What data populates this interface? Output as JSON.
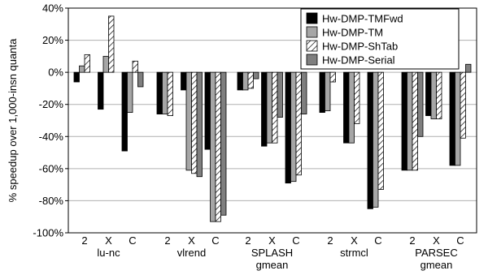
{
  "chart_data": {
    "type": "bar",
    "ylabel": "% speedup over 1,000-insn quanta",
    "ylim": [
      -100,
      40
    ],
    "yticks": [
      -100,
      -80,
      -60,
      -40,
      -20,
      0,
      20,
      40
    ],
    "ytick_labels": [
      "-100%",
      "-80%",
      "-60%",
      "-40%",
      "-20%",
      "0%",
      "20%",
      "40%"
    ],
    "grid": true,
    "legend_position": "top-right",
    "series": [
      {
        "name": "Hw-DMP-TMFwd",
        "color": "#000000",
        "pattern": "solid"
      },
      {
        "name": "Hw-DMP-TM",
        "color": "#a6a6a6",
        "pattern": "solid"
      },
      {
        "name": "Hw-DMP-ShTab",
        "color": "#ffffff",
        "pattern": "hatch"
      },
      {
        "name": "Hw-DMP-Serial",
        "color": "#7f7f7f",
        "pattern": "solid"
      }
    ],
    "groups": [
      {
        "label": [
          "lu-nc"
        ],
        "subgroups": [
          {
            "label": "2",
            "values": [
              -6,
              4,
              11,
              null
            ]
          },
          {
            "label": "X",
            "values": [
              -23,
              10,
              35,
              null
            ]
          },
          {
            "label": "C",
            "values": [
              -49,
              -25,
              7,
              -9
            ]
          }
        ]
      },
      {
        "label": [
          "vlrend"
        ],
        "subgroups": [
          {
            "label": "2",
            "values": [
              -26,
              -26,
              -27,
              null
            ]
          },
          {
            "label": "X",
            "values": [
              -11,
              -61,
              -63,
              -65
            ]
          },
          {
            "label": "C",
            "values": [
              -48,
              -93,
              -93,
              -89
            ]
          }
        ]
      },
      {
        "label": [
          "SPLASH",
          "gmean"
        ],
        "subgroups": [
          {
            "label": "2",
            "values": [
              -11,
              -11,
              -10,
              -4
            ]
          },
          {
            "label": "X",
            "values": [
              -46,
              -44,
              -44,
              -28
            ]
          },
          {
            "label": "C",
            "values": [
              -69,
              -68,
              -64,
              -26
            ]
          }
        ]
      },
      {
        "label": [
          "strmcl"
        ],
        "subgroups": [
          {
            "label": "2",
            "values": [
              -25,
              -24,
              -6,
              null
            ]
          },
          {
            "label": "X",
            "values": [
              -44,
              -44,
              -32,
              null
            ]
          },
          {
            "label": "C",
            "values": [
              -85,
              -84,
              -73,
              null
            ]
          }
        ]
      },
      {
        "label": [
          "PARSEC",
          "gmean"
        ],
        "subgroups": [
          {
            "label": "2",
            "values": [
              -61,
              -61,
              -61,
              -40
            ]
          },
          {
            "label": "X",
            "values": [
              -27,
              -29,
              -29,
              null
            ]
          },
          {
            "label": "C",
            "values": [
              -58,
              -58,
              -41,
              5
            ]
          }
        ]
      }
    ]
  }
}
